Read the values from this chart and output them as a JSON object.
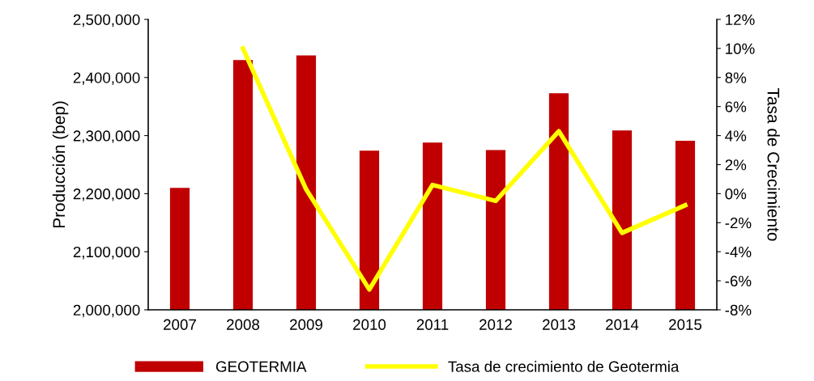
{
  "chart_data": {
    "type": "bar",
    "ylabel": "Producción (bep)",
    "y2label": "Tasa de Crecimiento",
    "categories": [
      "2007",
      "2008",
      "2009",
      "2010",
      "2011",
      "2012",
      "2013",
      "2014",
      "2015"
    ],
    "series": [
      {
        "name": "GEOTERMIA",
        "color": "#c00000",
        "values": [
          2210000,
          2430000,
          2438000,
          2274000,
          2288000,
          2275000,
          2373000,
          2309000,
          2291000
        ]
      },
      {
        "name": "Tasa de crecimiento de Geotermia",
        "type": "line",
        "axis": "y2",
        "color": "#ffff00",
        "values": [
          null,
          10.0,
          0.3,
          -6.6,
          0.6,
          -0.5,
          4.3,
          -2.7,
          -0.8
        ]
      }
    ],
    "ylim": [
      2000000,
      2500000
    ],
    "yticks": [
      {
        "value": 2000000,
        "label": "2,000,000"
      },
      {
        "value": 2100000,
        "label": "2,100,000"
      },
      {
        "value": 2200000,
        "label": "2,200,000"
      },
      {
        "value": 2300000,
        "label": "2,300,000"
      },
      {
        "value": 2400000,
        "label": "2,400,000"
      },
      {
        "value": 2500000,
        "label": "2,500,000"
      }
    ],
    "y2lim": [
      -8,
      12
    ],
    "y2ticks": [
      {
        "value": -8,
        "label": "-8%"
      },
      {
        "value": -6,
        "label": "-6%"
      },
      {
        "value": -4,
        "label": "-4%"
      },
      {
        "value": -2,
        "label": "-2%"
      },
      {
        "value": 0,
        "label": "0%"
      },
      {
        "value": 2,
        "label": "2%"
      },
      {
        "value": 4,
        "label": "4%"
      },
      {
        "value": 6,
        "label": "6%"
      },
      {
        "value": 8,
        "label": "8%"
      },
      {
        "value": 10,
        "label": "10%"
      },
      {
        "value": 12,
        "label": "12%"
      }
    ],
    "legend": "bottom",
    "marker": "none",
    "line_style": "solid",
    "grid": false
  }
}
